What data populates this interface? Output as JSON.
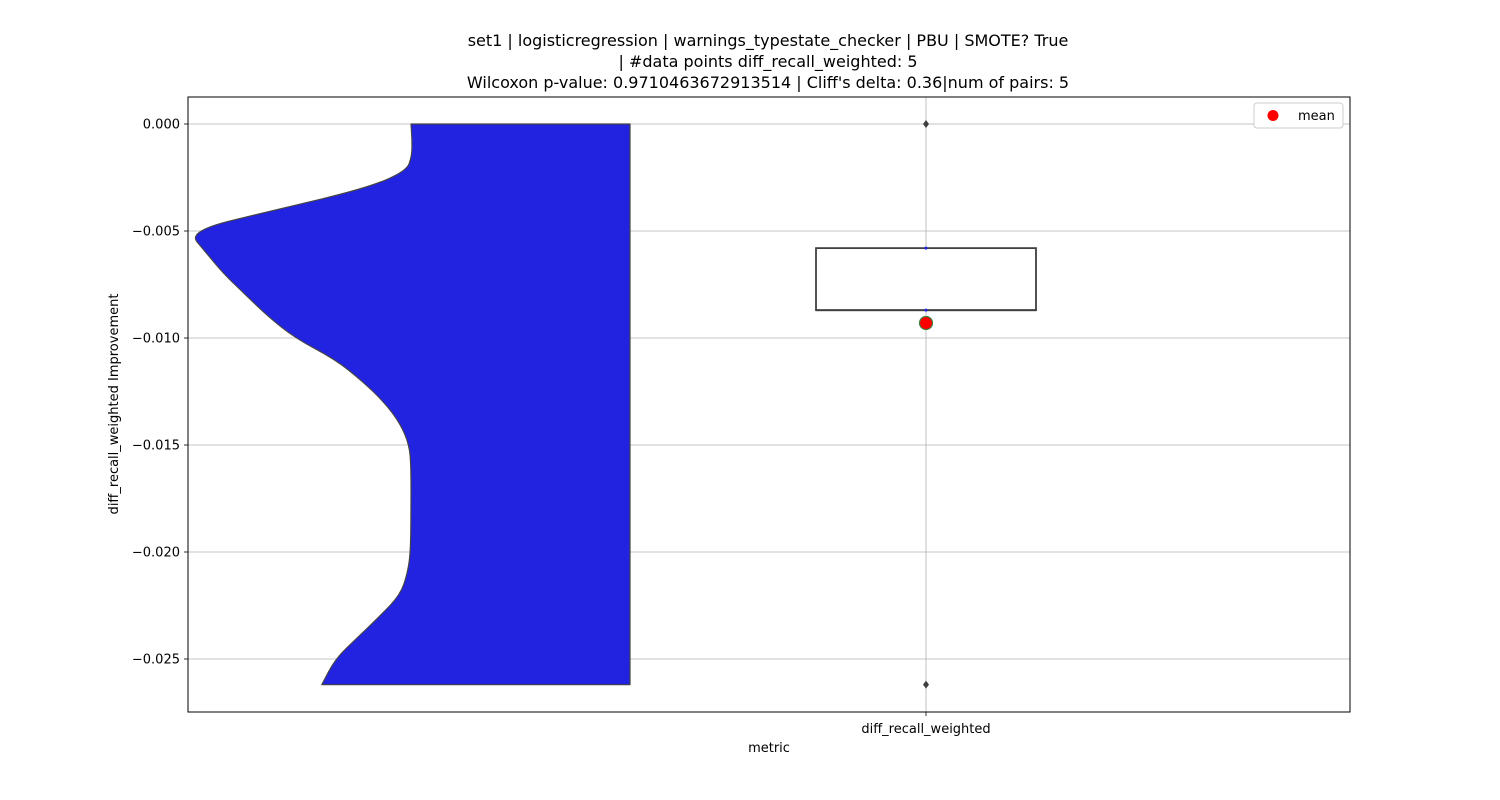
{
  "chart_data": {
    "type": "violin+box",
    "title_lines": [
      "set1 | logisticregression | warnings_typestate_checker | PBU | SMOTE? True",
      "| #data points diff_recall_weighted: 5",
      "Wilcoxon p-value: 0.9710463672913514 | Cliff's delta: 0.36|num of pairs: 5"
    ],
    "xlabel": "metric",
    "ylabel": "diff_recall_weighted Improvement",
    "categories": [
      "diff_recall_weighted"
    ],
    "ylim": [
      -0.0275,
      0.0013
    ],
    "yticks": [
      0.0,
      -0.005,
      -0.01,
      -0.015,
      -0.02,
      -0.025
    ],
    "ytick_labels": [
      "0.000",
      "−0.005",
      "−0.010",
      "−0.015",
      "−0.020",
      "−0.025"
    ],
    "grid": true,
    "legend": {
      "position": "top-right",
      "entries": [
        {
          "label": "mean",
          "color": "#ff0000"
        }
      ]
    },
    "violin": {
      "color": "#2222e1",
      "y_range": [
        -0.0262,
        0.0
      ],
      "density": [
        [
          0.0,
          0.0
        ],
        [
          -0.0008,
          0.012
        ],
        [
          -0.0015,
          0.009
        ],
        [
          -0.0022,
          -0.05
        ],
        [
          -0.003,
          -0.5
        ],
        [
          -0.004,
          -1.5
        ],
        [
          -0.005,
          -2.5
        ],
        [
          -0.006,
          -2.3
        ],
        [
          -0.007,
          -2.1
        ],
        [
          -0.008,
          -1.85
        ],
        [
          -0.009,
          -1.6
        ],
        [
          -0.01,
          -1.3
        ],
        [
          -0.011,
          -0.85
        ],
        [
          -0.012,
          -0.55
        ],
        [
          -0.013,
          -0.3
        ],
        [
          -0.014,
          -0.12
        ],
        [
          -0.015,
          -0.02
        ],
        [
          -0.016,
          0.0
        ],
        [
          -0.018,
          0.0
        ],
        [
          -0.02,
          -0.005
        ],
        [
          -0.021,
          -0.04
        ],
        [
          -0.022,
          -0.12
        ],
        [
          -0.023,
          -0.35
        ],
        [
          -0.024,
          -0.6
        ],
        [
          -0.025,
          -0.85
        ],
        [
          -0.0262,
          -1.0
        ]
      ]
    },
    "box": {
      "q1": -0.0087,
      "median": -0.0087,
      "q3": -0.0058,
      "whisker_low": -0.0087,
      "whisker_high": -0.0058,
      "outliers": [
        0.0,
        -0.0262
      ],
      "inner_points": [
        -0.0058,
        -0.0087
      ]
    },
    "mean": -0.0093
  }
}
